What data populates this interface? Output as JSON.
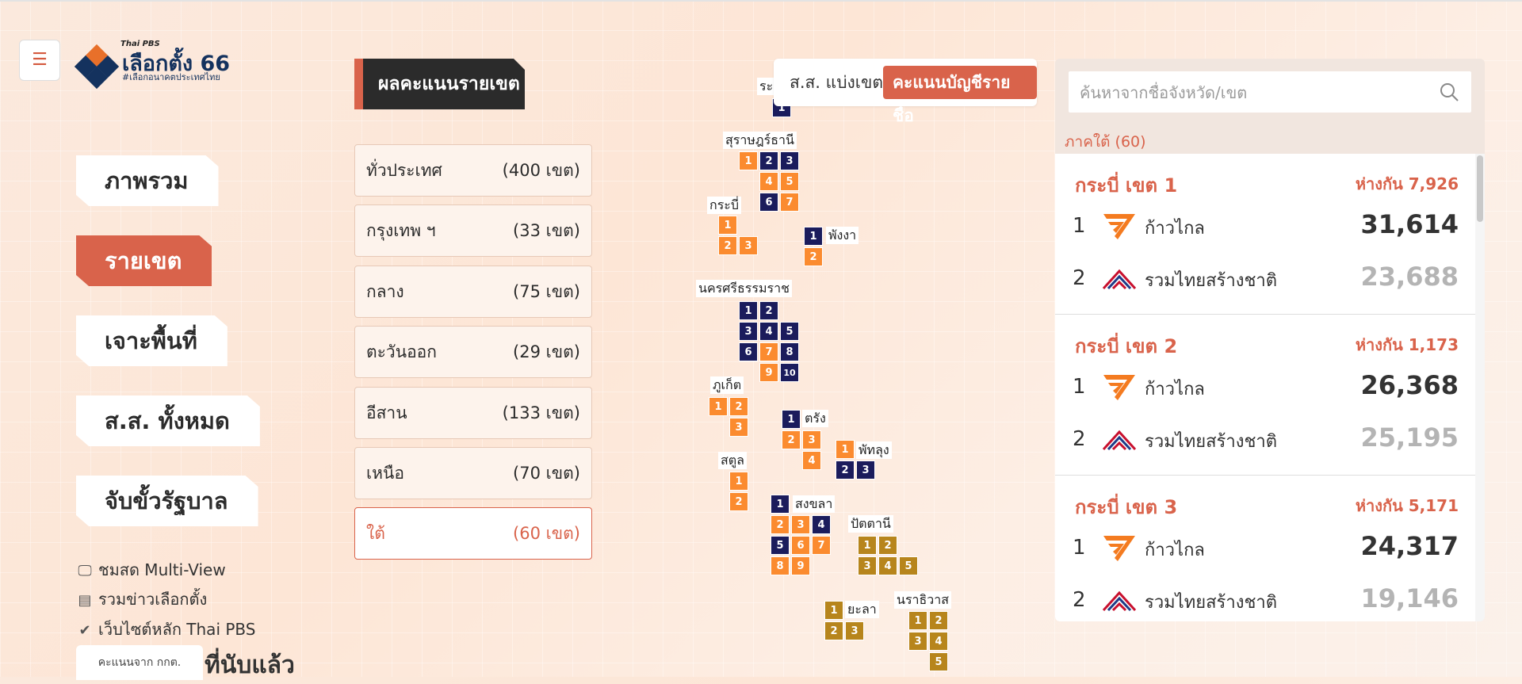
{
  "app": {
    "brand": "Thai PBS",
    "title": "เลือกตั้ง 66",
    "tagline": "#เลือกอนาคตประเทศไทย",
    "menu_icon": "hamburger-icon",
    "accent_color": "#d9634b"
  },
  "nav": {
    "items": [
      "ภาพรวม",
      "รายเขต",
      "เจาะพื้นที่",
      "ส.ส. ทั้งหมด",
      "จับขั้วรัฐบาล"
    ],
    "active": "รายเขต"
  },
  "links": [
    {
      "label": "ชมสด Multi-View",
      "icon": "monitor-icon"
    },
    {
      "label": "รวมข่าวเลือกตั้ง",
      "icon": "newspaper-icon"
    },
    {
      "label": "เว็บไซต์หลัก Thai PBS",
      "icon": "thaipbs-icon"
    }
  ],
  "footer": {
    "source": "คะแนนจาก กกต.",
    "counted": "ที่นับแล้ว"
  },
  "district_section": {
    "title": "ผลคะแนนรายเขต",
    "regions": [
      {
        "name": "ทั่วประเทศ",
        "count": "(400 เขต)"
      },
      {
        "name": "กรุงเทพ ฯ",
        "count": "(33 เขต)"
      },
      {
        "name": "กลาง",
        "count": "(75 เขต)"
      },
      {
        "name": "ตะวันออก",
        "count": "(29 เขต)"
      },
      {
        "name": "อีสาน",
        "count": "(133 เขต)"
      },
      {
        "name": "เหนือ",
        "count": "(70 เขต)"
      },
      {
        "name": "ใต้",
        "count": "(60 เขต)"
      }
    ],
    "active_region": "ใต้"
  },
  "toggle": {
    "option1": "ส.ส. แบ่งเขต",
    "option2": "คะแนนบัญชีรายชื่อ",
    "active": "คะแนนบัญชีรายชื่อ"
  },
  "map": {
    "party_colors": {
      "mf": "#fb8b2f",
      "rt": "#1b1c5c",
      "bj": "#b7851c"
    },
    "provinces": [
      {
        "name": "ระนอง",
        "label_shown": "ระน",
        "tiles": [
          {
            "n": "1",
            "p": "rt"
          }
        ]
      },
      {
        "name": "สุราษฎร์ธานี",
        "tiles": [
          {
            "n": "1",
            "p": "mf"
          },
          {
            "n": "2",
            "p": "rt"
          },
          {
            "n": "3",
            "p": "rt"
          },
          {
            "n": "4",
            "p": "mf"
          },
          {
            "n": "5",
            "p": "mf"
          },
          {
            "n": "6",
            "p": "rt"
          },
          {
            "n": "7",
            "p": "mf"
          }
        ]
      },
      {
        "name": "กระบี่",
        "tiles": [
          {
            "n": "1",
            "p": "mf"
          },
          {
            "n": "2",
            "p": "mf"
          },
          {
            "n": "3",
            "p": "mf"
          }
        ]
      },
      {
        "name": "พังงา",
        "tiles": [
          {
            "n": "1",
            "p": "rt"
          },
          {
            "n": "2",
            "p": "mf"
          }
        ]
      },
      {
        "name": "นครศรีธรรมราช",
        "tiles": [
          {
            "n": "1",
            "p": "rt"
          },
          {
            "n": "2",
            "p": "rt"
          },
          {
            "n": "3",
            "p": "rt"
          },
          {
            "n": "4",
            "p": "rt"
          },
          {
            "n": "5",
            "p": "rt"
          },
          {
            "n": "6",
            "p": "rt"
          },
          {
            "n": "7",
            "p": "mf"
          },
          {
            "n": "8",
            "p": "rt"
          },
          {
            "n": "9",
            "p": "mf"
          },
          {
            "n": "10",
            "p": "rt"
          }
        ]
      },
      {
        "name": "ภูเก็ต",
        "tiles": [
          {
            "n": "1",
            "p": "mf"
          },
          {
            "n": "2",
            "p": "mf"
          },
          {
            "n": "3",
            "p": "mf"
          }
        ]
      },
      {
        "name": "ตรัง",
        "tiles": [
          {
            "n": "1",
            "p": "rt"
          },
          {
            "n": "2",
            "p": "mf"
          },
          {
            "n": "3",
            "p": "mf"
          },
          {
            "n": "4",
            "p": "mf"
          }
        ]
      },
      {
        "name": "พัทลุง",
        "tiles": [
          {
            "n": "1",
            "p": "mf"
          },
          {
            "n": "2",
            "p": "rt"
          },
          {
            "n": "3",
            "p": "rt"
          }
        ]
      },
      {
        "name": "สตูล",
        "tiles": [
          {
            "n": "1",
            "p": "mf"
          },
          {
            "n": "2",
            "p": "mf"
          }
        ]
      },
      {
        "name": "สงขลา",
        "tiles": [
          {
            "n": "1",
            "p": "rt"
          },
          {
            "n": "2",
            "p": "mf"
          },
          {
            "n": "3",
            "p": "mf"
          },
          {
            "n": "4",
            "p": "rt"
          },
          {
            "n": "5",
            "p": "rt"
          },
          {
            "n": "6",
            "p": "mf"
          },
          {
            "n": "7",
            "p": "mf"
          },
          {
            "n": "8",
            "p": "mf"
          },
          {
            "n": "9",
            "p": "mf"
          }
        ]
      },
      {
        "name": "ปัตตานี",
        "tiles": [
          {
            "n": "1",
            "p": "bj"
          },
          {
            "n": "2",
            "p": "bj"
          },
          {
            "n": "3",
            "p": "bj"
          },
          {
            "n": "4",
            "p": "bj"
          },
          {
            "n": "5",
            "p": "bj"
          }
        ]
      },
      {
        "name": "ยะลา",
        "tiles": [
          {
            "n": "1",
            "p": "bj"
          },
          {
            "n": "2",
            "p": "bj"
          },
          {
            "n": "3",
            "p": "bj"
          }
        ]
      },
      {
        "name": "นราธิวาส",
        "tiles": [
          {
            "n": "1",
            "p": "bj"
          },
          {
            "n": "2",
            "p": "bj"
          },
          {
            "n": "3",
            "p": "bj"
          },
          {
            "n": "4",
            "p": "bj"
          },
          {
            "n": "5",
            "p": "bj"
          }
        ]
      }
    ]
  },
  "results": {
    "search_placeholder": "ค้นหาจากชื่อจังหวัด/เขต",
    "region_label": "ภาคใต้ (60)",
    "districts": [
      {
        "name": "กระบี่ เขต 1",
        "gap": "ห่างกัน 7,926",
        "candidates": [
          {
            "rank": "1",
            "party": "ก้าวไกล",
            "votes": "31,614"
          },
          {
            "rank": "2",
            "party": "รวมไทยสร้างชาติ",
            "votes": "23,688"
          }
        ]
      },
      {
        "name": "กระบี่ เขต 2",
        "gap": "ห่างกัน 1,173",
        "candidates": [
          {
            "rank": "1",
            "party": "ก้าวไกล",
            "votes": "26,368"
          },
          {
            "rank": "2",
            "party": "รวมไทยสร้างชาติ",
            "votes": "25,195"
          }
        ]
      },
      {
        "name": "กระบี่ เขต 3",
        "gap": "ห่างกัน 5,171",
        "candidates": [
          {
            "rank": "1",
            "party": "ก้าวไกล",
            "votes": "24,317"
          },
          {
            "rank": "2",
            "party": "รวมไทยสร้างชาติ",
            "votes": "19,146"
          }
        ]
      }
    ]
  }
}
